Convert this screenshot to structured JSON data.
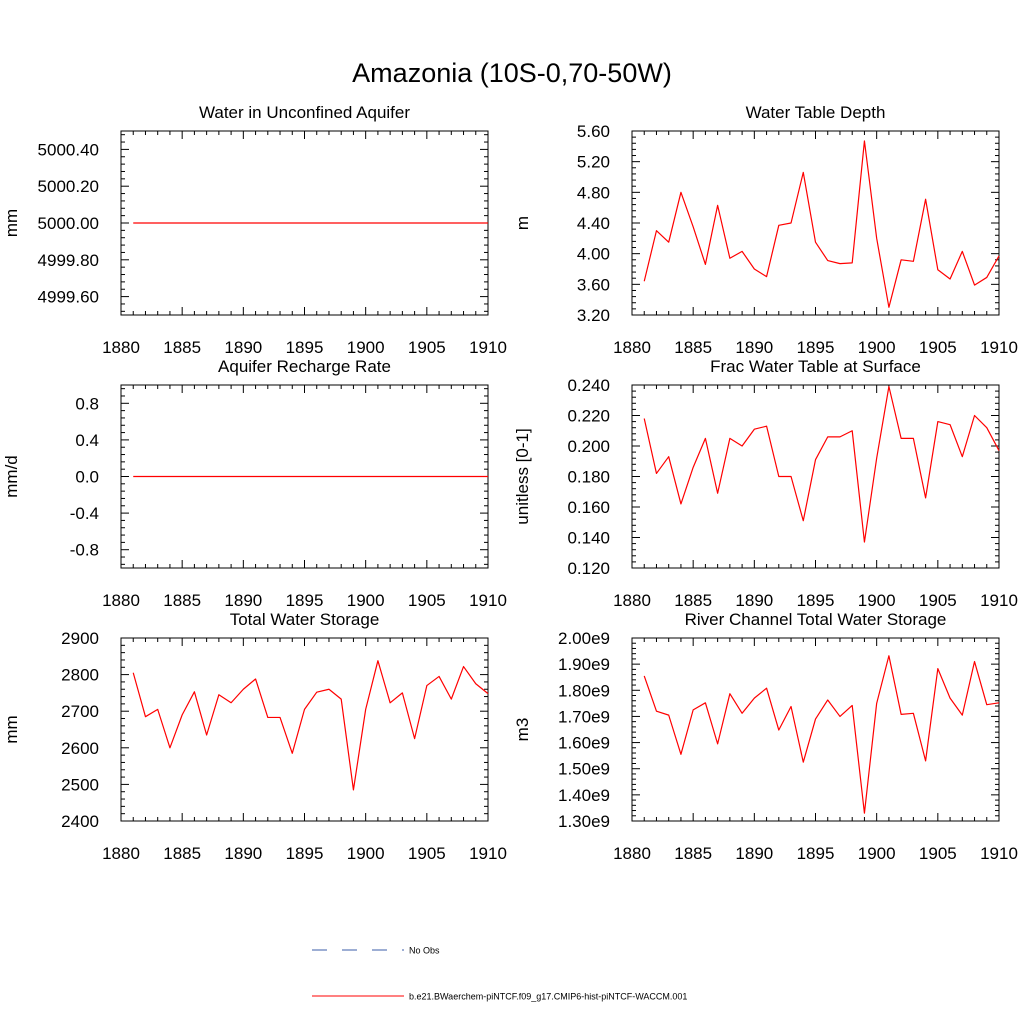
{
  "figure": {
    "title": "Amazonia (10S-0,70-50W)",
    "line_color": "#ff0000",
    "obs_color": "#3b5ea8"
  },
  "legend": {
    "items": [
      {
        "label": "No Obs",
        "style": "dashed",
        "color": "#3b5ea8"
      },
      {
        "label": "b.e21.BWaerchem-piNTCF.f09_g17.CMIP6-hist-piNTCF-WACCM.001",
        "style": "solid",
        "color": "#ff0000"
      }
    ]
  },
  "chart_data": [
    {
      "type": "line",
      "title": "Water in Unconfined Aquifer",
      "ylabel": "mm",
      "xlim": [
        1880,
        1910
      ],
      "ylim": [
        4999.5,
        5000.5
      ],
      "x_ticks": [
        1880,
        1885,
        1890,
        1895,
        1900,
        1905,
        1910
      ],
      "y_ticks": [
        4999.6,
        4999.8,
        5000.0,
        5000.2,
        5000.4
      ],
      "y_tick_labels": [
        "4999.60",
        "4999.80",
        "5000.00",
        "5000.20",
        "5000.40"
      ],
      "x": [
        1881,
        1910
      ],
      "values": [
        5000.0,
        5000.0
      ]
    },
    {
      "type": "line",
      "title": "Water Table Depth",
      "ylabel": "m",
      "xlim": [
        1880,
        1910
      ],
      "ylim": [
        3.2,
        5.6
      ],
      "x_ticks": [
        1880,
        1885,
        1890,
        1895,
        1900,
        1905,
        1910
      ],
      "y_ticks": [
        3.2,
        3.6,
        4.0,
        4.4,
        4.8,
        5.2,
        5.6
      ],
      "y_tick_labels": [
        "3.20",
        "3.60",
        "4.00",
        "4.40",
        "4.80",
        "5.20",
        "5.60"
      ],
      "x": [
        1881,
        1882,
        1883,
        1884,
        1885,
        1886,
        1887,
        1888,
        1889,
        1890,
        1891,
        1892,
        1893,
        1894,
        1895,
        1896,
        1897,
        1898,
        1899,
        1900,
        1901,
        1902,
        1903,
        1904,
        1905,
        1906,
        1907,
        1908,
        1909,
        1910
      ],
      "values": [
        3.64,
        4.3,
        4.15,
        4.8,
        4.35,
        3.86,
        4.63,
        3.94,
        4.03,
        3.8,
        3.7,
        4.37,
        4.4,
        5.06,
        4.15,
        3.91,
        3.87,
        3.88,
        5.47,
        4.2,
        3.3,
        3.92,
        3.9,
        4.71,
        3.79,
        3.67,
        4.03,
        3.59,
        3.69,
        3.97
      ]
    },
    {
      "type": "line",
      "title": "Aquifer Recharge Rate",
      "ylabel": "mm/d",
      "xlim": [
        1880,
        1910
      ],
      "ylim": [
        -1.0,
        1.0
      ],
      "x_ticks": [
        1880,
        1885,
        1890,
        1895,
        1900,
        1905,
        1910
      ],
      "y_ticks": [
        -0.8,
        -0.4,
        0.0,
        0.4,
        0.8
      ],
      "y_tick_labels": [
        "-0.8",
        "-0.4",
        "0.0",
        "0.4",
        "0.8"
      ],
      "x": [
        1881,
        1910
      ],
      "values": [
        0.0,
        0.0
      ]
    },
    {
      "type": "line",
      "title": "Frac Water Table at Surface",
      "ylabel": "unitless [0-1]",
      "xlim": [
        1880,
        1910
      ],
      "ylim": [
        0.12,
        0.24
      ],
      "x_ticks": [
        1880,
        1885,
        1890,
        1895,
        1900,
        1905,
        1910
      ],
      "y_ticks": [
        0.12,
        0.14,
        0.16,
        0.18,
        0.2,
        0.22,
        0.24
      ],
      "y_tick_labels": [
        "0.120",
        "0.140",
        "0.160",
        "0.180",
        "0.200",
        "0.220",
        "0.240"
      ],
      "x": [
        1881,
        1882,
        1883,
        1884,
        1885,
        1886,
        1887,
        1888,
        1889,
        1890,
        1891,
        1892,
        1893,
        1894,
        1895,
        1896,
        1897,
        1898,
        1899,
        1900,
        1901,
        1902,
        1903,
        1904,
        1905,
        1906,
        1907,
        1908,
        1909,
        1910
      ],
      "values": [
        0.218,
        0.182,
        0.193,
        0.162,
        0.186,
        0.205,
        0.169,
        0.205,
        0.2,
        0.211,
        0.213,
        0.18,
        0.18,
        0.151,
        0.191,
        0.206,
        0.206,
        0.21,
        0.137,
        0.192,
        0.239,
        0.205,
        0.205,
        0.166,
        0.216,
        0.214,
        0.193,
        0.22,
        0.212,
        0.197
      ]
    },
    {
      "type": "line",
      "title": "Total Water Storage",
      "ylabel": "mm",
      "xlim": [
        1880,
        1910
      ],
      "ylim": [
        2400,
        2900
      ],
      "x_ticks": [
        1880,
        1885,
        1890,
        1895,
        1900,
        1905,
        1910
      ],
      "y_ticks": [
        2400,
        2500,
        2600,
        2700,
        2800,
        2900
      ],
      "y_tick_labels": [
        "2400",
        "2500",
        "2600",
        "2700",
        "2800",
        "2900"
      ],
      "x": [
        1881,
        1882,
        1883,
        1884,
        1885,
        1886,
        1887,
        1888,
        1889,
        1890,
        1891,
        1892,
        1893,
        1894,
        1895,
        1896,
        1897,
        1898,
        1899,
        1900,
        1901,
        1902,
        1903,
        1904,
        1905,
        1906,
        1907,
        1908,
        1909,
        1910
      ],
      "values": [
        2805,
        2685,
        2705,
        2600,
        2690,
        2753,
        2635,
        2745,
        2723,
        2760,
        2788,
        2683,
        2683,
        2585,
        2705,
        2752,
        2760,
        2733,
        2485,
        2705,
        2838,
        2723,
        2750,
        2625,
        2770,
        2795,
        2733,
        2822,
        2775,
        2748
      ]
    },
    {
      "type": "line",
      "title": "River Channel Total Water Storage",
      "ylabel": "m3",
      "xlim": [
        1880,
        1910
      ],
      "ylim": [
        1300000000.0,
        2000000000.0
      ],
      "x_ticks": [
        1880,
        1885,
        1890,
        1895,
        1900,
        1905,
        1910
      ],
      "y_ticks": [
        1300000000.0,
        1400000000.0,
        1500000000.0,
        1600000000.0,
        1700000000.0,
        1800000000.0,
        1900000000.0,
        2000000000.0
      ],
      "y_tick_labels": [
        "1.30e9",
        "1.40e9",
        "1.50e9",
        "1.60e9",
        "1.70e9",
        "1.80e9",
        "1.90e9",
        "2.00e9"
      ],
      "x": [
        1881,
        1882,
        1883,
        1884,
        1885,
        1886,
        1887,
        1888,
        1889,
        1890,
        1891,
        1892,
        1893,
        1894,
        1895,
        1896,
        1897,
        1898,
        1899,
        1900,
        1901,
        1902,
        1903,
        1904,
        1905,
        1906,
        1907,
        1908,
        1909,
        1910
      ],
      "values": [
        1855000000.0,
        1720000000.0,
        1705000000.0,
        1555000000.0,
        1725000000.0,
        1752000000.0,
        1595000000.0,
        1787000000.0,
        1712000000.0,
        1770000000.0,
        1808000000.0,
        1648000000.0,
        1738000000.0,
        1525000000.0,
        1690000000.0,
        1763000000.0,
        1700000000.0,
        1742000000.0,
        1330000000.0,
        1750000000.0,
        1932000000.0,
        1708000000.0,
        1712000000.0,
        1530000000.0,
        1883000000.0,
        1770000000.0,
        1705000000.0,
        1910000000.0,
        1745000000.0,
        1752000000.0
      ]
    }
  ]
}
